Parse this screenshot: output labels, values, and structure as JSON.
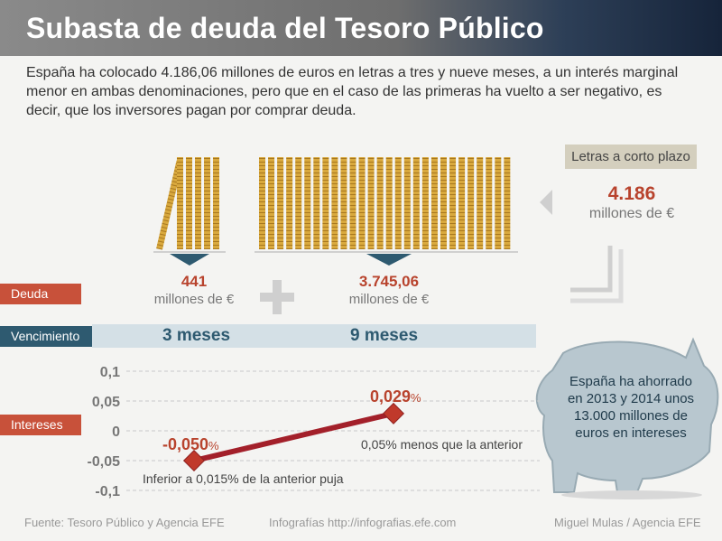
{
  "title": "Subasta de deuda del Tesoro Público",
  "intro": "España ha colocado 4.186,06 millones de euros en letras a tres y nueve meses, a un interés marginal menor en ambas denominaciones, pero que en el caso de las primeras ha vuelto a ser negativo, es decir, que los inversores pagan por comprar deuda.",
  "labels": {
    "deuda": "Deuda",
    "vencimiento": "Vencimiento",
    "intereses": "Intereses"
  },
  "short_term": {
    "label": "Letras a corto plazo",
    "total": "4.186",
    "unit": "millones de €"
  },
  "debt": [
    {
      "value": "441",
      "unit": "millones de €"
    },
    {
      "value": "3.745,06",
      "unit": "millones de €"
    }
  ],
  "maturity": [
    "3 meses",
    "9 meses"
  ],
  "savings_note": "España ha ahorrado en 2013 y 2014 unos 13.000 millones de euros en intereses",
  "footer": {
    "source": "Fuente: Tesoro Público y Agencia EFE",
    "web": "Infografías http://infografias.efe.com",
    "author": "Miguel Mulas / Agencia EFE"
  },
  "colors": {
    "accent_red": "#b8432d",
    "line": "#a3202a",
    "blue": "#2e5a70",
    "gold": "#d4a53c"
  },
  "chart_data": {
    "type": "line",
    "categories": [
      "3 meses",
      "9 meses"
    ],
    "values": [
      -0.05,
      0.029
    ],
    "value_labels": [
      "-0,050",
      "0,029"
    ],
    "value_suffix": "%",
    "annotations": [
      "Inferior a 0,015% de la anterior puja",
      "0,05% menos que la anterior"
    ],
    "y_ticks": [
      "0,1",
      "0,05",
      "0",
      "-0,05",
      "-0,1"
    ],
    "y_values": [
      0.1,
      0.05,
      0,
      -0.05,
      -0.1
    ],
    "ylim": [
      -0.1,
      0.1
    ],
    "grid": true
  }
}
